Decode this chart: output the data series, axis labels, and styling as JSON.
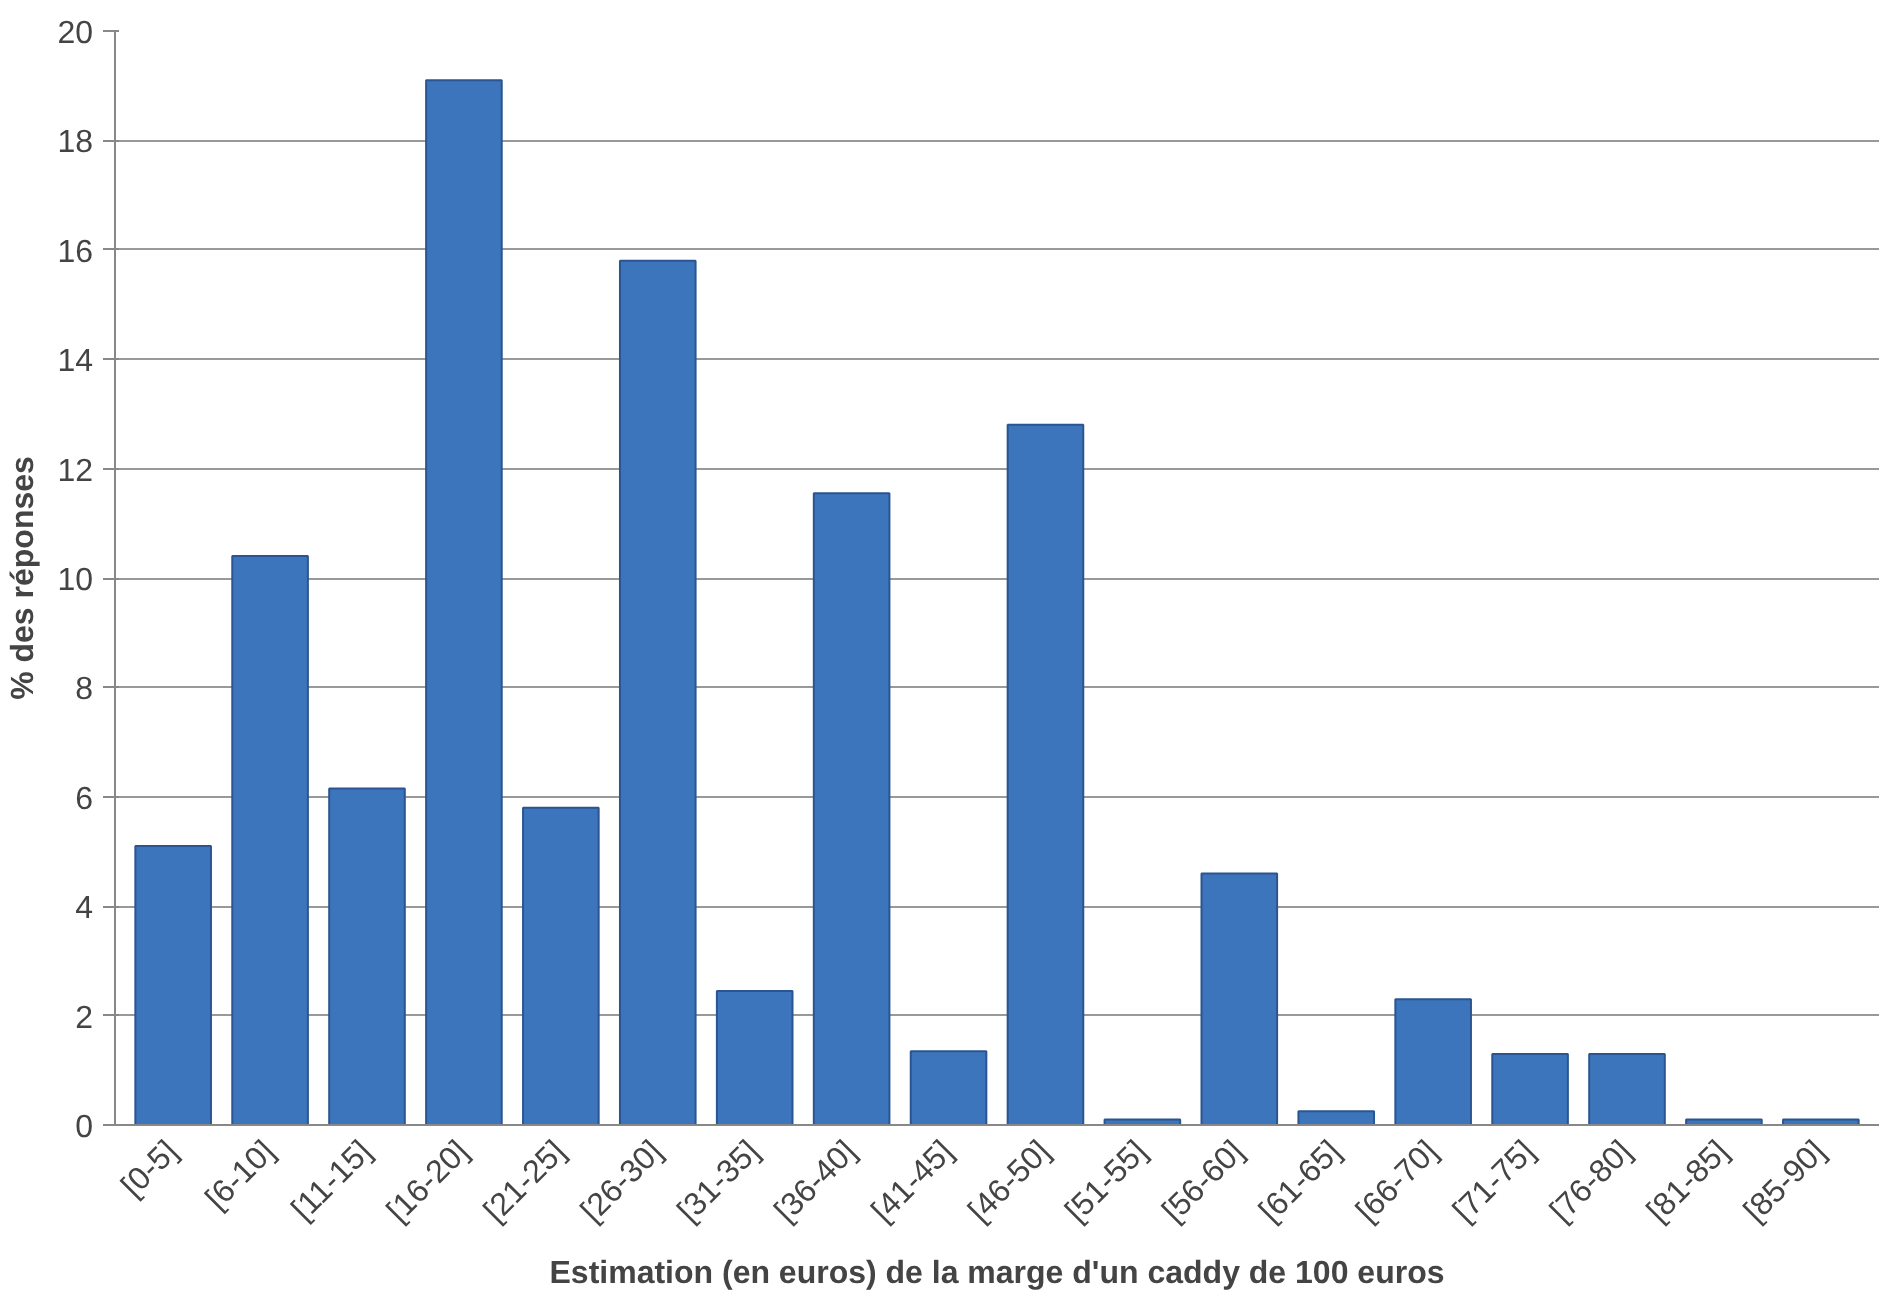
{
  "chart_data": {
    "type": "bar",
    "xlabel": "Estimation (en euros) de la marge d'un caddy de 100 euros",
    "ylabel": "% des réponses",
    "categories": [
      "[0-5]",
      "[6-10]",
      "[11-15]",
      "[16-20]",
      "[21-25]",
      "[26-30]",
      "[31-35]",
      "[36-40]",
      "[41-45]",
      "[46-50]",
      "[51-55]",
      "[56-60]",
      "[61-65]",
      "[66-70]",
      "[71-75]",
      "[76-80]",
      "[81-85]",
      "[85-90]"
    ],
    "values": [
      5.1,
      10.4,
      6.15,
      19.1,
      5.8,
      15.8,
      2.45,
      11.55,
      1.35,
      12.8,
      0.1,
      4.6,
      0.25,
      2.3,
      1.3,
      1.3,
      0.1,
      0.1
    ],
    "color": "#3d75bd",
    "ylim": [
      0,
      20
    ],
    "yticks": [
      0,
      2,
      4,
      6,
      8,
      10,
      12,
      14,
      16,
      18,
      20
    ],
    "grid": "y"
  }
}
